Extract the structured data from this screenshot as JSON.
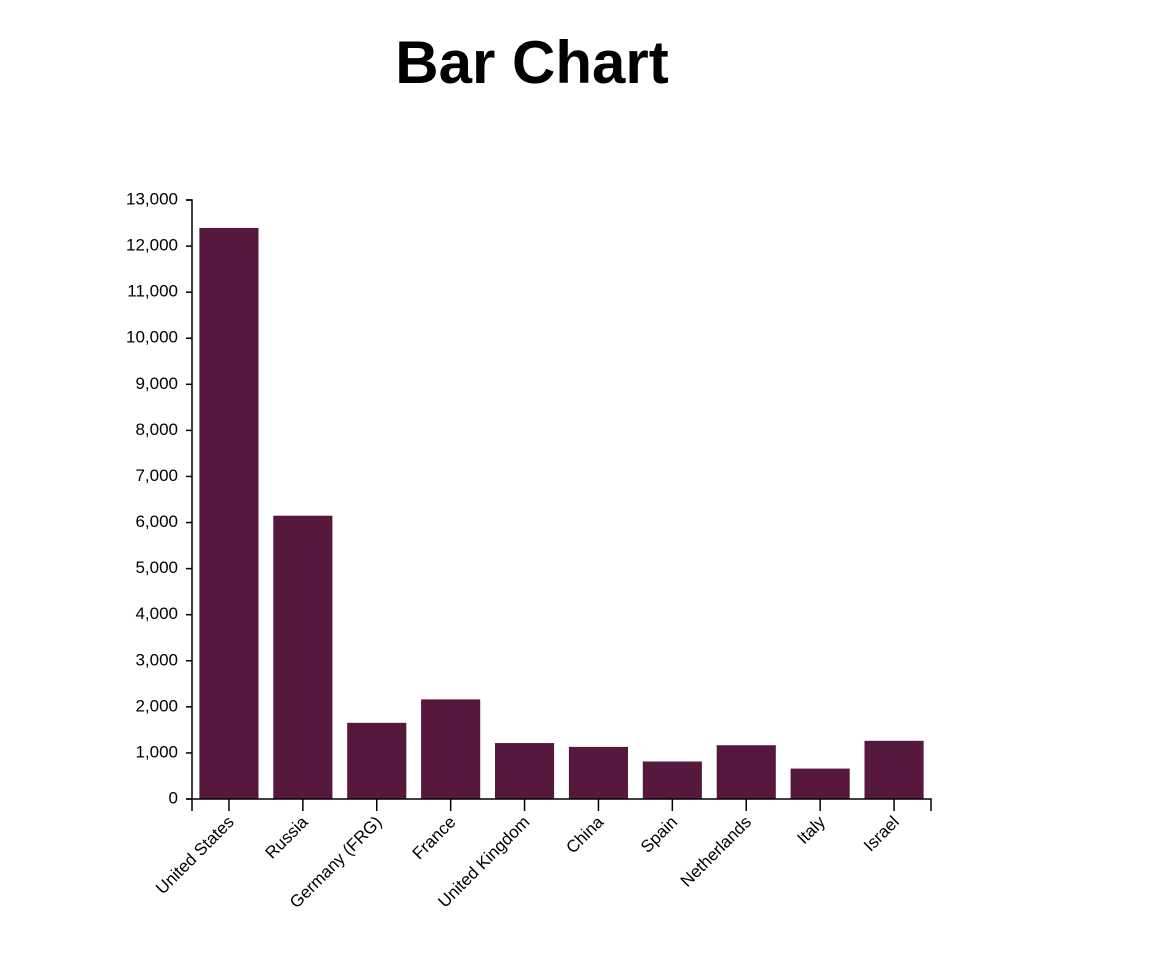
{
  "chart_data": {
    "type": "bar",
    "title": "Bar Chart",
    "xlabel": "",
    "ylabel": "",
    "categories": [
      "United States",
      "Russia",
      "Germany (FRG)",
      "France",
      "United Kingdom",
      "China",
      "Spain",
      "Netherlands",
      "Italy",
      "Israel"
    ],
    "values": [
      12394,
      6148,
      1653,
      2162,
      1214,
      1131,
      814,
      1167,
      660,
      1263
    ],
    "ylim": [
      0,
      13000
    ],
    "y_ticks": [
      "0",
      "1,000",
      "2,000",
      "3,000",
      "4,000",
      "5,000",
      "6,000",
      "7,000",
      "8,000",
      "9,000",
      "10,000",
      "11,000",
      "12,000",
      "13,000"
    ],
    "bar_color": "#56193d",
    "grid": false,
    "legend": "none"
  }
}
